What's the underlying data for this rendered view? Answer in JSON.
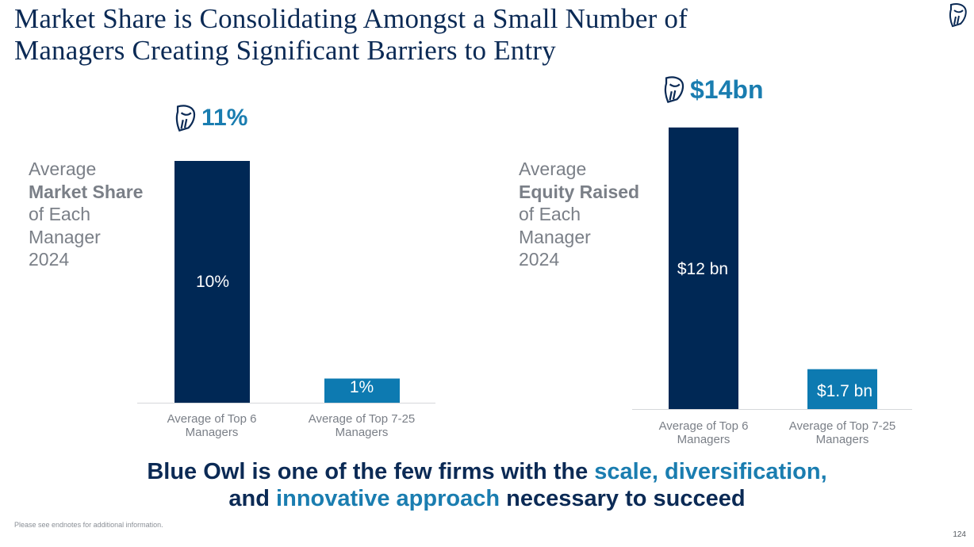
{
  "title_line1": "Market Share is Consolidating Amongst a Small Number of",
  "title_line2": "Managers Creating Significant Barriers to Entry",
  "logo_icon": "blue-owl-icon",
  "colors": {
    "navy": "#002855",
    "teal": "#0d7ab1",
    "grey_text": "#7a7f87"
  },
  "chart_data": [
    {
      "type": "bar",
      "categories": [
        "Average of Top 6 Managers",
        "Average of Top 7-25 Managers"
      ],
      "values": [
        10,
        1
      ],
      "value_labels": [
        "10%",
        "1%"
      ],
      "unit": "%",
      "blue_owl_value": 11,
      "blue_owl_label": "11%",
      "side_label": {
        "line1": "Average",
        "bold": "Market Share",
        "line3": "of Each",
        "line4": "Manager",
        "line5": "2024"
      },
      "ylim": [
        0,
        12
      ],
      "legend": "none",
      "grid": false
    },
    {
      "type": "bar",
      "categories": [
        "Average of Top 6 Managers",
        "Average of Top 7-25 Managers"
      ],
      "values": [
        12,
        1.7
      ],
      "value_labels": [
        "$12 bn",
        "$1.7 bn"
      ],
      "unit": "$bn",
      "blue_owl_value": 14,
      "blue_owl_label": "$14bn",
      "side_label": {
        "line1": "Average",
        "bold": "Equity Raised",
        "line3": "of Each",
        "line4": "Manager",
        "line5": "2024"
      },
      "ylim": [
        0,
        12
      ],
      "legend": "none",
      "grid": false
    }
  ],
  "tagline": {
    "part1": "Blue Owl is one of the few firms with the ",
    "hl1": "scale, diversification,",
    "part2": "and ",
    "hl2": "innovative approach",
    "part3": " necessary to succeed"
  },
  "footnote": "Please see endnotes for additional information.",
  "page_number": "124"
}
